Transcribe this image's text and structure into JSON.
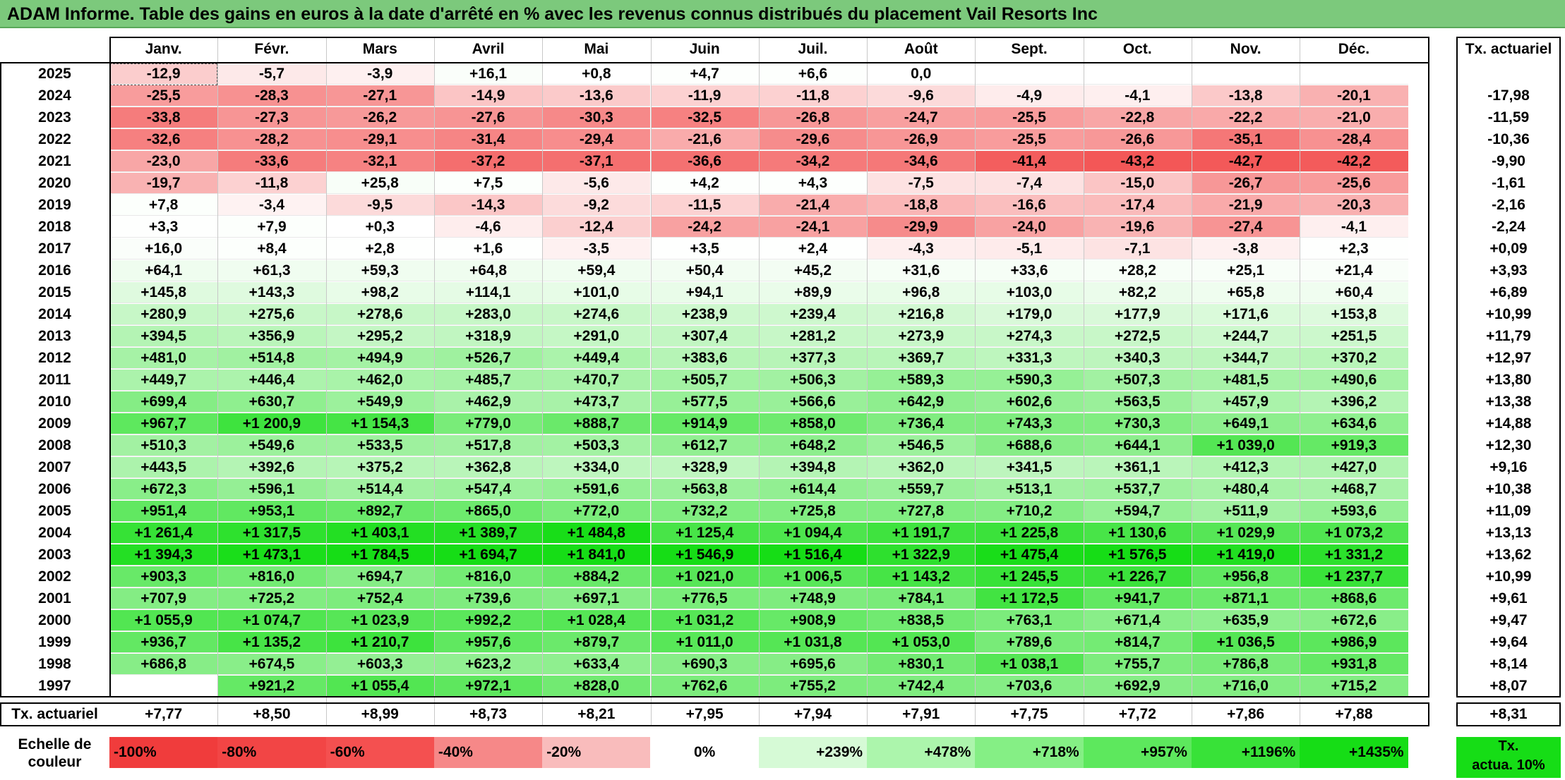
{
  "title": "ADAM Informe. Table des gains en euros à la date d'arrêté en % avec les revenus connus distribués du placement Vail Resorts Inc",
  "months": [
    "Janv.",
    "Févr.",
    "Mars",
    "Avril",
    "Mai",
    "Juin",
    "Juil.",
    "Août",
    "Sept.",
    "Oct.",
    "Nov.",
    "Déc."
  ],
  "annual_header": "Tx. actuariel",
  "rows": [
    {
      "year": "2025",
      "values": [
        "-12,9",
        "-5,7",
        "-3,9",
        "+16,1",
        "+0,8",
        "+4,7",
        "+6,6",
        "0,0",
        "",
        "",
        "",
        ""
      ],
      "annual": ""
    },
    {
      "year": "2024",
      "values": [
        "-25,5",
        "-28,3",
        "-27,1",
        "-14,9",
        "-13,6",
        "-11,9",
        "-11,8",
        "-9,6",
        "-4,9",
        "-4,1",
        "-13,8",
        "-20,1"
      ],
      "annual": "-17,98"
    },
    {
      "year": "2023",
      "values": [
        "-33,8",
        "-27,3",
        "-26,2",
        "-27,6",
        "-30,3",
        "-32,5",
        "-26,8",
        "-24,7",
        "-25,5",
        "-22,8",
        "-22,2",
        "-21,0"
      ],
      "annual": "-11,59"
    },
    {
      "year": "2022",
      "values": [
        "-32,6",
        "-28,2",
        "-29,1",
        "-31,4",
        "-29,4",
        "-21,6",
        "-29,6",
        "-26,9",
        "-25,5",
        "-26,6",
        "-35,1",
        "-28,4"
      ],
      "annual": "-10,36"
    },
    {
      "year": "2021",
      "values": [
        "-23,0",
        "-33,6",
        "-32,1",
        "-37,2",
        "-37,1",
        "-36,6",
        "-34,2",
        "-34,6",
        "-41,4",
        "-43,2",
        "-42,7",
        "-42,2"
      ],
      "annual": "-9,90"
    },
    {
      "year": "2020",
      "values": [
        "-19,7",
        "-11,8",
        "+25,8",
        "+7,5",
        "-5,6",
        "+4,2",
        "+4,3",
        "-7,5",
        "-7,4",
        "-15,0",
        "-26,7",
        "-25,6"
      ],
      "annual": "-1,61"
    },
    {
      "year": "2019",
      "values": [
        "+7,8",
        "-3,4",
        "-9,5",
        "-14,3",
        "-9,2",
        "-11,5",
        "-21,4",
        "-18,8",
        "-16,6",
        "-17,4",
        "-21,9",
        "-20,3"
      ],
      "annual": "-2,16"
    },
    {
      "year": "2018",
      "values": [
        "+3,3",
        "+7,9",
        "+0,3",
        "-4,6",
        "-12,4",
        "-24,2",
        "-24,1",
        "-29,9",
        "-24,0",
        "-19,6",
        "-27,4",
        "-4,1"
      ],
      "annual": "-2,24"
    },
    {
      "year": "2017",
      "values": [
        "+16,0",
        "+8,4",
        "+2,8",
        "+1,6",
        "-3,5",
        "+3,5",
        "+2,4",
        "-4,3",
        "-5,1",
        "-7,1",
        "-3,8",
        "+2,3"
      ],
      "annual": "+0,09"
    },
    {
      "year": "2016",
      "values": [
        "+64,1",
        "+61,3",
        "+59,3",
        "+64,8",
        "+59,4",
        "+50,4",
        "+45,2",
        "+31,6",
        "+33,6",
        "+28,2",
        "+25,1",
        "+21,4"
      ],
      "annual": "+3,93"
    },
    {
      "year": "2015",
      "values": [
        "+145,8",
        "+143,3",
        "+98,2",
        "+114,1",
        "+101,0",
        "+94,1",
        "+89,9",
        "+96,8",
        "+103,0",
        "+82,2",
        "+65,8",
        "+60,4"
      ],
      "annual": "+6,89"
    },
    {
      "year": "2014",
      "values": [
        "+280,9",
        "+275,6",
        "+278,6",
        "+283,0",
        "+274,6",
        "+238,9",
        "+239,4",
        "+216,8",
        "+179,0",
        "+177,9",
        "+171,6",
        "+153,8"
      ],
      "annual": "+10,99"
    },
    {
      "year": "2013",
      "values": [
        "+394,5",
        "+356,9",
        "+295,2",
        "+318,9",
        "+291,0",
        "+307,4",
        "+281,2",
        "+273,9",
        "+274,3",
        "+272,5",
        "+244,7",
        "+251,5"
      ],
      "annual": "+11,79"
    },
    {
      "year": "2012",
      "values": [
        "+481,0",
        "+514,8",
        "+494,9",
        "+526,7",
        "+449,4",
        "+383,6",
        "+377,3",
        "+369,7",
        "+331,3",
        "+340,3",
        "+344,7",
        "+370,2"
      ],
      "annual": "+12,97"
    },
    {
      "year": "2011",
      "values": [
        "+449,7",
        "+446,4",
        "+462,0",
        "+485,7",
        "+470,7",
        "+505,7",
        "+506,3",
        "+589,3",
        "+590,3",
        "+507,3",
        "+481,5",
        "+490,6"
      ],
      "annual": "+13,80"
    },
    {
      "year": "2010",
      "values": [
        "+699,4",
        "+630,7",
        "+549,9",
        "+462,9",
        "+473,7",
        "+577,5",
        "+566,6",
        "+642,9",
        "+602,6",
        "+563,5",
        "+457,9",
        "+396,2"
      ],
      "annual": "+13,38"
    },
    {
      "year": "2009",
      "values": [
        "+967,7",
        "+1 200,9",
        "+1 154,3",
        "+779,0",
        "+888,7",
        "+914,9",
        "+858,0",
        "+736,4",
        "+743,3",
        "+730,3",
        "+649,1",
        "+634,6"
      ],
      "annual": "+14,88"
    },
    {
      "year": "2008",
      "values": [
        "+510,3",
        "+549,6",
        "+533,5",
        "+517,8",
        "+503,3",
        "+612,7",
        "+648,2",
        "+546,5",
        "+688,6",
        "+644,1",
        "+1 039,0",
        "+919,3"
      ],
      "annual": "+12,30"
    },
    {
      "year": "2007",
      "values": [
        "+443,5",
        "+392,6",
        "+375,2",
        "+362,8",
        "+334,0",
        "+328,9",
        "+394,8",
        "+362,0",
        "+341,5",
        "+361,1",
        "+412,3",
        "+427,0"
      ],
      "annual": "+9,16"
    },
    {
      "year": "2006",
      "values": [
        "+672,3",
        "+596,1",
        "+514,4",
        "+547,4",
        "+591,6",
        "+563,8",
        "+614,4",
        "+559,7",
        "+513,1",
        "+537,7",
        "+480,4",
        "+468,7"
      ],
      "annual": "+10,38"
    },
    {
      "year": "2005",
      "values": [
        "+951,4",
        "+953,1",
        "+892,7",
        "+865,0",
        "+772,0",
        "+732,2",
        "+725,8",
        "+727,8",
        "+710,2",
        "+594,7",
        "+511,9",
        "+593,6"
      ],
      "annual": "+11,09"
    },
    {
      "year": "2004",
      "values": [
        "+1 261,4",
        "+1 317,5",
        "+1 403,1",
        "+1 389,7",
        "+1 484,8",
        "+1 125,4",
        "+1 094,4",
        "+1 191,7",
        "+1 225,8",
        "+1 130,6",
        "+1 029,9",
        "+1 073,2"
      ],
      "annual": "+13,13"
    },
    {
      "year": "2003",
      "values": [
        "+1 394,3",
        "+1 473,1",
        "+1 784,5",
        "+1 694,7",
        "+1 841,0",
        "+1 546,9",
        "+1 516,4",
        "+1 322,9",
        "+1 475,4",
        "+1 576,5",
        "+1 419,0",
        "+1 331,2"
      ],
      "annual": "+13,62"
    },
    {
      "year": "2002",
      "values": [
        "+903,3",
        "+816,0",
        "+694,7",
        "+816,0",
        "+884,2",
        "+1 021,0",
        "+1 006,5",
        "+1 143,2",
        "+1 245,5",
        "+1 226,7",
        "+956,8",
        "+1 237,7"
      ],
      "annual": "+10,99"
    },
    {
      "year": "2001",
      "values": [
        "+707,9",
        "+725,2",
        "+752,4",
        "+739,6",
        "+697,1",
        "+776,5",
        "+748,9",
        "+784,1",
        "+1 172,5",
        "+941,7",
        "+871,1",
        "+868,6"
      ],
      "annual": "+9,61"
    },
    {
      "year": "2000",
      "values": [
        "+1 055,9",
        "+1 074,7",
        "+1 023,9",
        "+992,2",
        "+1 028,4",
        "+1 031,2",
        "+908,9",
        "+838,5",
        "+763,1",
        "+671,4",
        "+635,9",
        "+672,6"
      ],
      "annual": "+9,47"
    },
    {
      "year": "1999",
      "values": [
        "+936,7",
        "+1 135,2",
        "+1 210,7",
        "+957,6",
        "+879,7",
        "+1 011,0",
        "+1 031,8",
        "+1 053,0",
        "+789,6",
        "+814,7",
        "+1 036,5",
        "+986,9"
      ],
      "annual": "+9,64"
    },
    {
      "year": "1998",
      "values": [
        "+686,8",
        "+674,5",
        "+603,3",
        "+623,2",
        "+633,4",
        "+690,3",
        "+695,6",
        "+830,1",
        "+1 038,1",
        "+755,7",
        "+786,8",
        "+931,8"
      ],
      "annual": "+8,14"
    },
    {
      "year": "1997",
      "values": [
        "",
        "+921,2",
        "+1 055,4",
        "+972,1",
        "+828,0",
        "+762,6",
        "+755,2",
        "+742,4",
        "+703,6",
        "+692,9",
        "+716,0",
        "+715,2"
      ],
      "annual": "+8,07"
    }
  ],
  "footer": {
    "label": "Tx. actuariel",
    "values": [
      "+7,77",
      "+8,50",
      "+8,99",
      "+8,73",
      "+8,21",
      "+7,95",
      "+7,94",
      "+7,91",
      "+7,75",
      "+7,72",
      "+7,86",
      "+7,88"
    ],
    "annual": "+8,31"
  },
  "legend": {
    "label_line1": "Echelle de",
    "label_line2": "couleur",
    "steps": [
      {
        "text": "-100%",
        "color": "#f03c3c"
      },
      {
        "text": "-80%",
        "color": "#f24545"
      },
      {
        "text": "-60%",
        "color": "#f45050"
      },
      {
        "text": "-40%",
        "color": "#f68888"
      },
      {
        "text": "-20%",
        "color": "#f9bcbc"
      },
      {
        "text": "0%",
        "color": "#ffffff"
      },
      {
        "text": "+239%",
        "color": "#d6fad6"
      },
      {
        "text": "+478%",
        "color": "#acf5ac"
      },
      {
        "text": "+718%",
        "color": "#85ef85"
      },
      {
        "text": "+957%",
        "color": "#5de85d"
      },
      {
        "text": "+1196%",
        "color": "#38e238"
      },
      {
        "text": "+1435%",
        "color": "#16dd16"
      }
    ],
    "annual_line1": "Tx.",
    "annual_line2": "actua. 10%",
    "annual_color": "#16dd16"
  }
}
